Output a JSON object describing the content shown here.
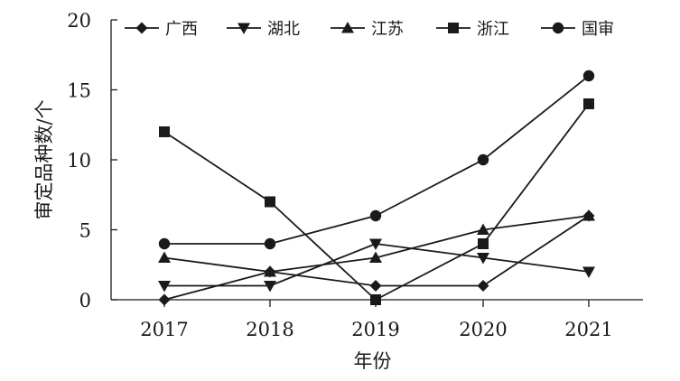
{
  "chart_data": {
    "type": "line",
    "title": "",
    "xlabel": "年份",
    "ylabel": "审定品种数/个",
    "categories": [
      "2017",
      "2018",
      "2019",
      "2020",
      "2021"
    ],
    "ylim": [
      0,
      20
    ],
    "yticks": [
      "0",
      "5",
      "10",
      "15",
      "20"
    ],
    "grid": false,
    "legend_position": "top",
    "series": [
      {
        "name": "广西",
        "marker": "diamond",
        "color": "#1a1a1a",
        "values": [
          0,
          2,
          1,
          1,
          6
        ]
      },
      {
        "name": "湖北",
        "marker": "triangle-down",
        "color": "#1a1a1a",
        "values": [
          1,
          1,
          4,
          3,
          2
        ]
      },
      {
        "name": "江苏",
        "marker": "triangle-up",
        "color": "#1a1a1a",
        "values": [
          3,
          2,
          3,
          5,
          6
        ]
      },
      {
        "name": "浙江",
        "marker": "square",
        "color": "#1a1a1a",
        "values": [
          12,
          7,
          0,
          4,
          14
        ]
      },
      {
        "name": "国审",
        "marker": "circle",
        "color": "#1a1a1a",
        "values": [
          4,
          4,
          6,
          10,
          16
        ]
      }
    ]
  }
}
